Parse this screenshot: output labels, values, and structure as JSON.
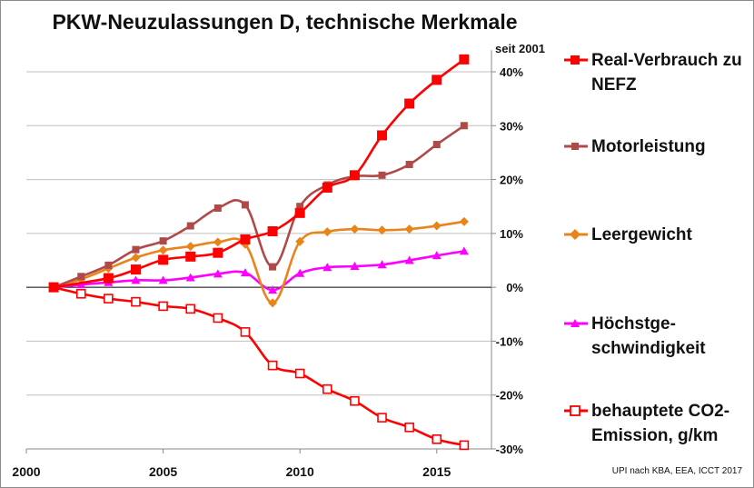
{
  "chart_data": {
    "type": "line",
    "title": "PKW-Neuzulassungen D, technische Merkmale",
    "y_unit_label": "seit 2001",
    "x_ticks": [
      2000,
      2005,
      2010,
      2015
    ],
    "y_ticks": [
      "40%",
      "30%",
      "20%",
      "10%",
      "0%",
      "-10%",
      "-20%",
      "-30%"
    ],
    "y_tick_values": [
      40,
      30,
      20,
      10,
      0,
      -10,
      -20,
      -30
    ],
    "xlim": [
      2000,
      2017
    ],
    "ylim": [
      -30,
      44
    ],
    "grid": "horizontal",
    "legend_position": "right",
    "x": [
      2001,
      2002,
      2003,
      2004,
      2005,
      2006,
      2007,
      2008,
      2009,
      2010,
      2011,
      2012,
      2013,
      2014,
      2015,
      2016
    ],
    "series": [
      {
        "name": "Real-Verbrauch zu NEFZ",
        "color": "#ff0000",
        "marker": "square-filled",
        "points": [
          [
            2001,
            0
          ],
          [
            2003,
            1.7
          ],
          [
            2004,
            3.3
          ],
          [
            2005,
            5.1
          ],
          [
            2006,
            5.7
          ],
          [
            2007,
            6.4
          ],
          [
            2008,
            8.9
          ],
          [
            2009,
            10.4
          ],
          [
            2010,
            13.8
          ],
          [
            2011,
            18.5
          ],
          [
            2012,
            20.8
          ],
          [
            2013,
            28.2
          ],
          [
            2014,
            34.1
          ],
          [
            2015,
            38.5
          ],
          [
            2016,
            42.3
          ]
        ]
      },
      {
        "name": "Motorleistung",
        "color": "#b04a48",
        "marker": "square-small",
        "points": [
          [
            2001,
            0
          ],
          [
            2002,
            2.0
          ],
          [
            2003,
            4.1
          ],
          [
            2004,
            7.0
          ],
          [
            2005,
            8.6
          ],
          [
            2006,
            11.4
          ],
          [
            2007,
            14.7
          ],
          [
            2008,
            15.3
          ],
          [
            2009,
            3.8
          ],
          [
            2010,
            15.0
          ],
          [
            2011,
            19.0
          ],
          [
            2012,
            20.6
          ],
          [
            2013,
            20.8
          ],
          [
            2014,
            22.8
          ],
          [
            2015,
            26.5
          ],
          [
            2016,
            30.0
          ]
        ]
      },
      {
        "name": "Leergewicht",
        "color": "#e8841a",
        "marker": "diamond",
        "points": [
          [
            2001,
            0
          ],
          [
            2002,
            1.5
          ],
          [
            2003,
            3.5
          ],
          [
            2004,
            5.5
          ],
          [
            2005,
            6.9
          ],
          [
            2006,
            7.6
          ],
          [
            2007,
            8.4
          ],
          [
            2008,
            8.0
          ],
          [
            2009,
            -2.9
          ],
          [
            2010,
            8.5
          ],
          [
            2011,
            10.3
          ],
          [
            2012,
            10.8
          ],
          [
            2013,
            10.6
          ],
          [
            2014,
            10.8
          ],
          [
            2015,
            11.4
          ],
          [
            2016,
            12.2
          ]
        ]
      },
      {
        "name": "Höchstge-schwindigkeit",
        "label_lines": [
          "Höchstge-",
          "schwindigkeit"
        ],
        "color": "#ff00ff",
        "marker": "triangle",
        "points": [
          [
            2001,
            0
          ],
          [
            2002,
            0.5
          ],
          [
            2003,
            0.9
          ],
          [
            2004,
            1.3
          ],
          [
            2005,
            1.3
          ],
          [
            2006,
            1.8
          ],
          [
            2007,
            2.5
          ],
          [
            2008,
            2.7
          ],
          [
            2009,
            -0.5
          ],
          [
            2010,
            2.6
          ],
          [
            2011,
            3.7
          ],
          [
            2012,
            3.9
          ],
          [
            2013,
            4.2
          ],
          [
            2014,
            5.0
          ],
          [
            2015,
            5.9
          ],
          [
            2016,
            6.7
          ]
        ]
      },
      {
        "name": "behauptete CO2-Emission, g/km",
        "label_lines": [
          "behauptete CO2-",
          "Emission, g/km"
        ],
        "color": "#ff0000",
        "marker": "square-open",
        "points": [
          [
            2001,
            0
          ],
          [
            2002,
            -1.2
          ],
          [
            2003,
            -2.1
          ],
          [
            2004,
            -2.7
          ],
          [
            2005,
            -3.5
          ],
          [
            2006,
            -4.0
          ],
          [
            2007,
            -5.7
          ],
          [
            2008,
            -8.3
          ],
          [
            2009,
            -14.5
          ],
          [
            2010,
            -16.0
          ],
          [
            2011,
            -18.9
          ],
          [
            2012,
            -21.1
          ],
          [
            2013,
            -24.2
          ],
          [
            2014,
            -26.0
          ],
          [
            2015,
            -28.2
          ],
          [
            2016,
            -29.3
          ]
        ]
      }
    ]
  },
  "source": "UPI nach KBA, EEA, ICCT 2017"
}
